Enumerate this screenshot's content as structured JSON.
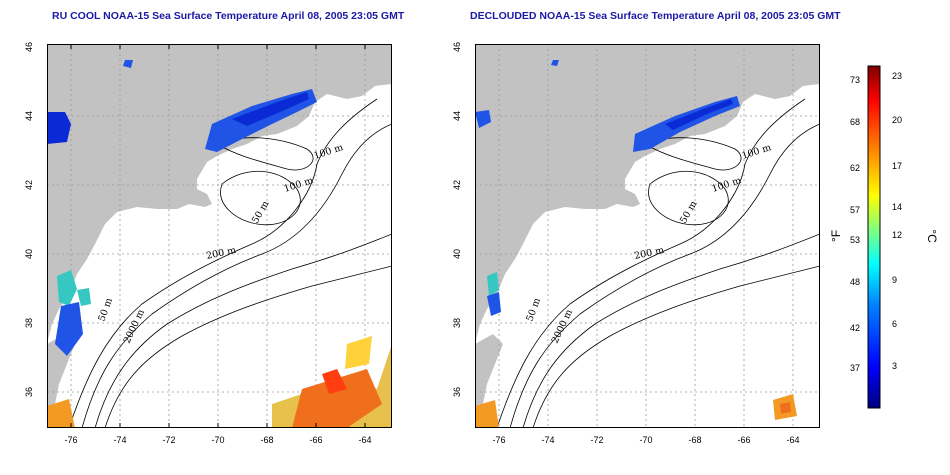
{
  "titles": {
    "left": "RU COOL NOAA-15 Sea Surface Temperature April 08, 2005 23:05 GMT",
    "right": "DECLOUDED NOAA-15 Sea Surface Temperature April 08, 2005 23:05 GMT"
  },
  "axes": {
    "lon_ticks": [
      "-76",
      "-74",
      "-72",
      "-70",
      "-68",
      "-66",
      "-64"
    ],
    "lat_ticks": [
      "46",
      "44",
      "42",
      "40",
      "38",
      "36"
    ]
  },
  "contour_labels": {
    "c100a": "100 m",
    "c100b": "100 m",
    "c50a": "50 m",
    "c200": "200 m",
    "c50b": "50 m",
    "c2000": "2000 m"
  },
  "colorbar": {
    "fahrenheit_ticks": [
      "73",
      "68",
      "62",
      "57",
      "53",
      "48",
      "42",
      "37"
    ],
    "celsius_ticks": [
      "23",
      "20",
      "17",
      "14",
      "12",
      "9",
      "6",
      "3"
    ],
    "unit_f": "°F",
    "unit_c": "°C",
    "colors": [
      "#00007f",
      "#0000ff",
      "#0080ff",
      "#00ffff",
      "#80ff80",
      "#ffff00",
      "#ff8000",
      "#ff0000",
      "#7f0000"
    ]
  },
  "colors": {
    "land": "#c2c2c2",
    "grid": "#9a9a9a",
    "title": "#1a1aa6"
  }
}
